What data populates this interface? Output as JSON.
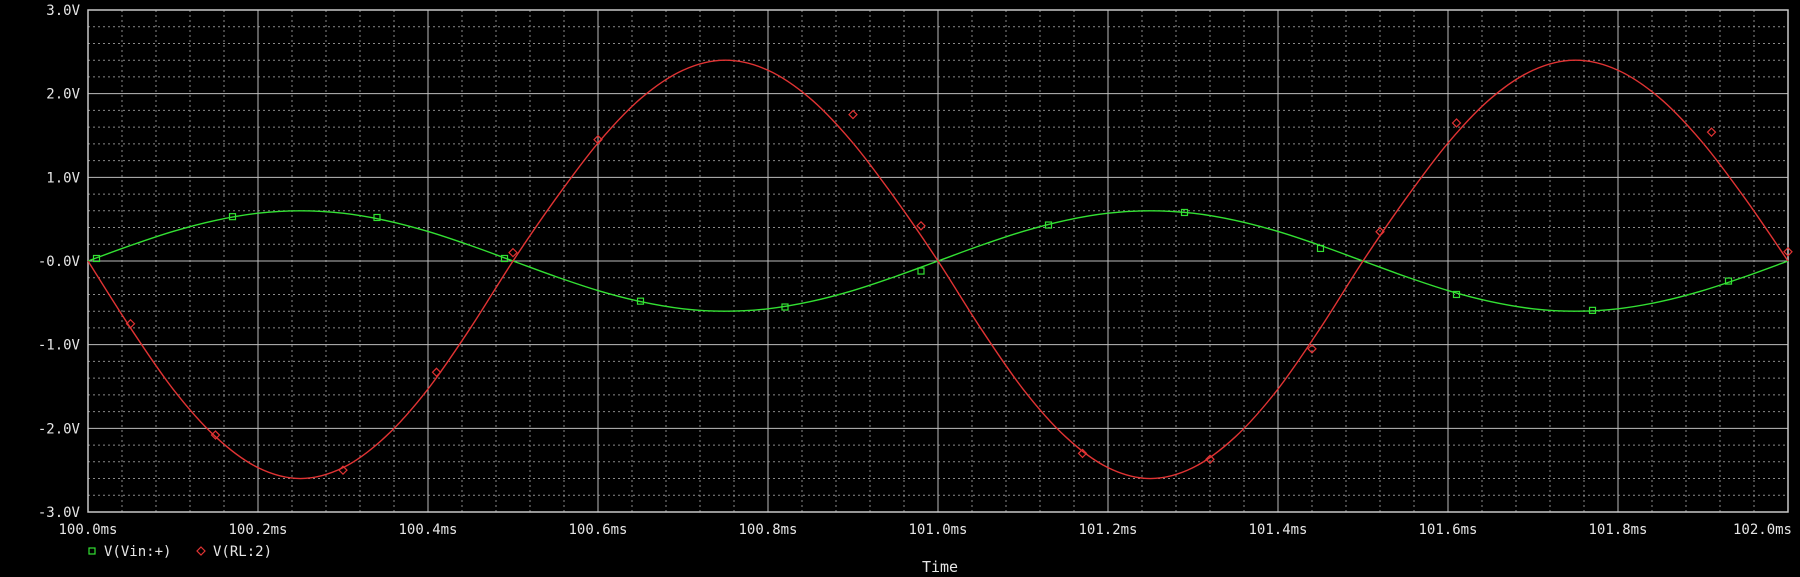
{
  "chart_data": {
    "type": "line",
    "title": "",
    "xlabel": "Time",
    "ylabel": "",
    "xlim": [
      100.0,
      102.0
    ],
    "ylim": [
      -3.0,
      3.0
    ],
    "grid": true,
    "x_ticks": [
      100.0,
      100.2,
      100.4,
      100.6,
      100.8,
      101.0,
      101.2,
      101.4,
      101.6,
      101.8,
      102.0
    ],
    "x_tick_labels": [
      "100.0ms",
      "100.2ms",
      "100.4ms",
      "100.6ms",
      "100.8ms",
      "101.0ms",
      "101.2ms",
      "101.4ms",
      "101.6ms",
      "101.8ms",
      "102.0ms"
    ],
    "y_ticks": [
      3.0,
      2.0,
      1.0,
      0.0,
      -1.0,
      -2.0,
      -3.0
    ],
    "y_tick_labels": [
      "3.0V",
      "2.0V",
      "1.0V",
      "-0.0V",
      "-1.0V",
      "-2.0V",
      "-3.0V"
    ],
    "legend_position": "bottom-left",
    "series": [
      {
        "name": "V(Vin:+)",
        "color": "#33e033",
        "marker": "square",
        "x": [
          100.0,
          100.05,
          100.1,
          100.15,
          100.2,
          100.25,
          100.3,
          100.35,
          100.4,
          100.45,
          100.5,
          100.55,
          100.6,
          100.65,
          100.7,
          100.75,
          100.8,
          100.85,
          100.9,
          100.95,
          101.0,
          101.05,
          101.1,
          101.15,
          101.2,
          101.25,
          101.3,
          101.35,
          101.4,
          101.45,
          101.5,
          101.55,
          101.6,
          101.65,
          101.7,
          101.75,
          101.8,
          101.85,
          101.9,
          101.95,
          102.0
        ],
        "y": [
          0.0,
          0.185,
          0.353,
          0.485,
          0.571,
          0.6,
          0.571,
          0.485,
          0.353,
          0.185,
          0.0,
          -0.185,
          -0.353,
          -0.485,
          -0.571,
          -0.6,
          -0.571,
          -0.485,
          -0.353,
          -0.185,
          0.0,
          0.185,
          0.353,
          0.485,
          0.571,
          0.6,
          0.571,
          0.485,
          0.353,
          0.185,
          0.0,
          -0.185,
          -0.353,
          -0.485,
          -0.571,
          -0.6,
          -0.571,
          -0.485,
          -0.353,
          -0.185,
          0.0
        ],
        "markers_x": [
          100.01,
          100.17,
          100.34,
          100.49,
          100.65,
          100.82,
          100.98,
          101.13,
          101.29,
          101.45,
          101.61,
          101.77,
          101.93
        ],
        "markers_y": [
          0.03,
          0.53,
          0.52,
          0.03,
          -0.48,
          -0.55,
          -0.12,
          0.43,
          0.58,
          0.15,
          -0.4,
          -0.59,
          -0.24
        ]
      },
      {
        "name": "V(RL:2)",
        "color": "#e03333",
        "marker": "diamond",
        "x": [
          100.0,
          100.05,
          100.1,
          100.15,
          100.2,
          100.25,
          100.3,
          100.35,
          100.4,
          100.45,
          100.5,
          100.55,
          100.6,
          100.65,
          100.7,
          100.75,
          100.8,
          100.85,
          100.9,
          100.95,
          101.0,
          101.05,
          101.1,
          101.15,
          101.2,
          101.25,
          101.3,
          101.35,
          101.4,
          101.45,
          101.5,
          101.55,
          101.6,
          101.65,
          101.7,
          101.75,
          101.8,
          101.85,
          101.9,
          101.95,
          102.0
        ],
        "y": [
          0.0,
          -0.8,
          -1.53,
          -2.1,
          -2.47,
          -2.6,
          -2.47,
          -2.1,
          -1.53,
          -0.8,
          0.0,
          0.74,
          1.41,
          1.94,
          2.28,
          2.4,
          2.28,
          1.94,
          1.41,
          0.74,
          0.0,
          -0.8,
          -1.53,
          -2.1,
          -2.47,
          -2.6,
          -2.47,
          -2.1,
          -1.53,
          -0.8,
          0.0,
          0.74,
          1.41,
          1.94,
          2.28,
          2.4,
          2.28,
          1.94,
          1.41,
          0.74,
          0.0
        ],
        "markers_x": [
          100.05,
          100.15,
          100.3,
          100.41,
          100.5,
          100.6,
          100.9,
          100.98,
          101.17,
          101.32,
          101.44,
          101.52,
          101.61,
          101.91,
          102.0
        ],
        "markers_y": [
          -0.75,
          -2.08,
          -2.5,
          -1.33,
          0.1,
          1.45,
          1.75,
          0.42,
          -2.3,
          -2.37,
          -1.05,
          0.35,
          1.65,
          1.54,
          0.11
        ]
      }
    ]
  }
}
